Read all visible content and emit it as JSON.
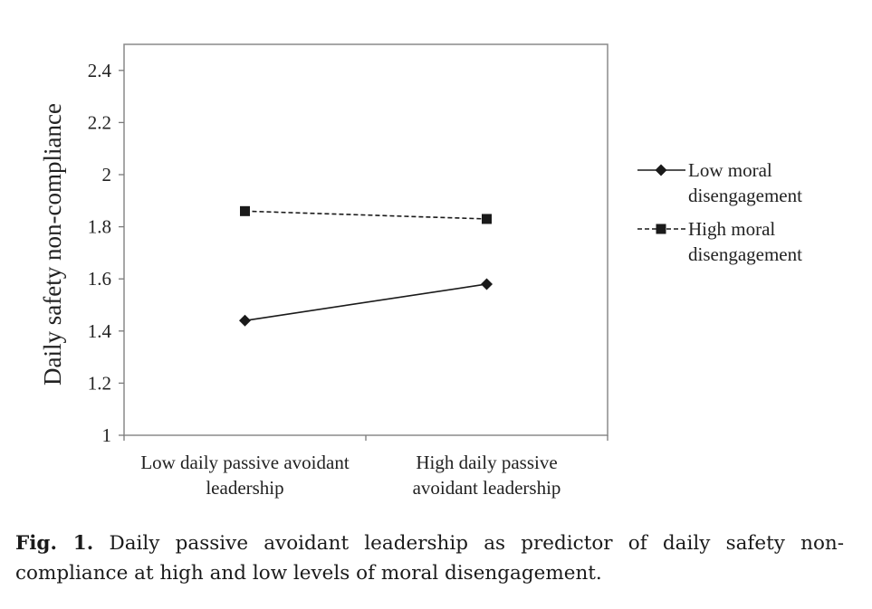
{
  "chart_data": {
    "type": "line",
    "title": "",
    "xlabel": "",
    "ylabel": "Daily safety non-compliance",
    "ylim": [
      1,
      2.5
    ],
    "yticks": [
      1,
      1.2,
      1.4,
      1.6,
      1.8,
      2,
      2.2,
      2.4
    ],
    "ytick_labels": [
      "1",
      "1.2",
      "1.4",
      "1.6",
      "1.8",
      "2",
      "2.2",
      "2.4"
    ],
    "categories": [
      [
        "Low daily passive avoidant",
        "leadership"
      ],
      [
        "High daily passive",
        "avoidant leadership"
      ]
    ],
    "series": [
      {
        "name": "Low moral disengagement",
        "name_lines": [
          "Low moral",
          "disengagement"
        ],
        "marker": "diamond",
        "line_style": "solid",
        "values": [
          1.44,
          1.58
        ]
      },
      {
        "name": "High moral disengagement",
        "name_lines": [
          "High moral",
          "disengagement"
        ],
        "marker": "square",
        "line_style": "dashed",
        "values": [
          1.86,
          1.83
        ]
      }
    ],
    "legend_position": "right",
    "grid": false
  },
  "caption": {
    "label": "Fig. 1.",
    "text": "Daily passive avoidant leadership as predictor of daily safety non-compliance at high and low levels of moral disengagement."
  },
  "colors": {
    "line": "#1a1a1a",
    "axis": "#7a7a7a",
    "frame": "#8a8a8a"
  }
}
